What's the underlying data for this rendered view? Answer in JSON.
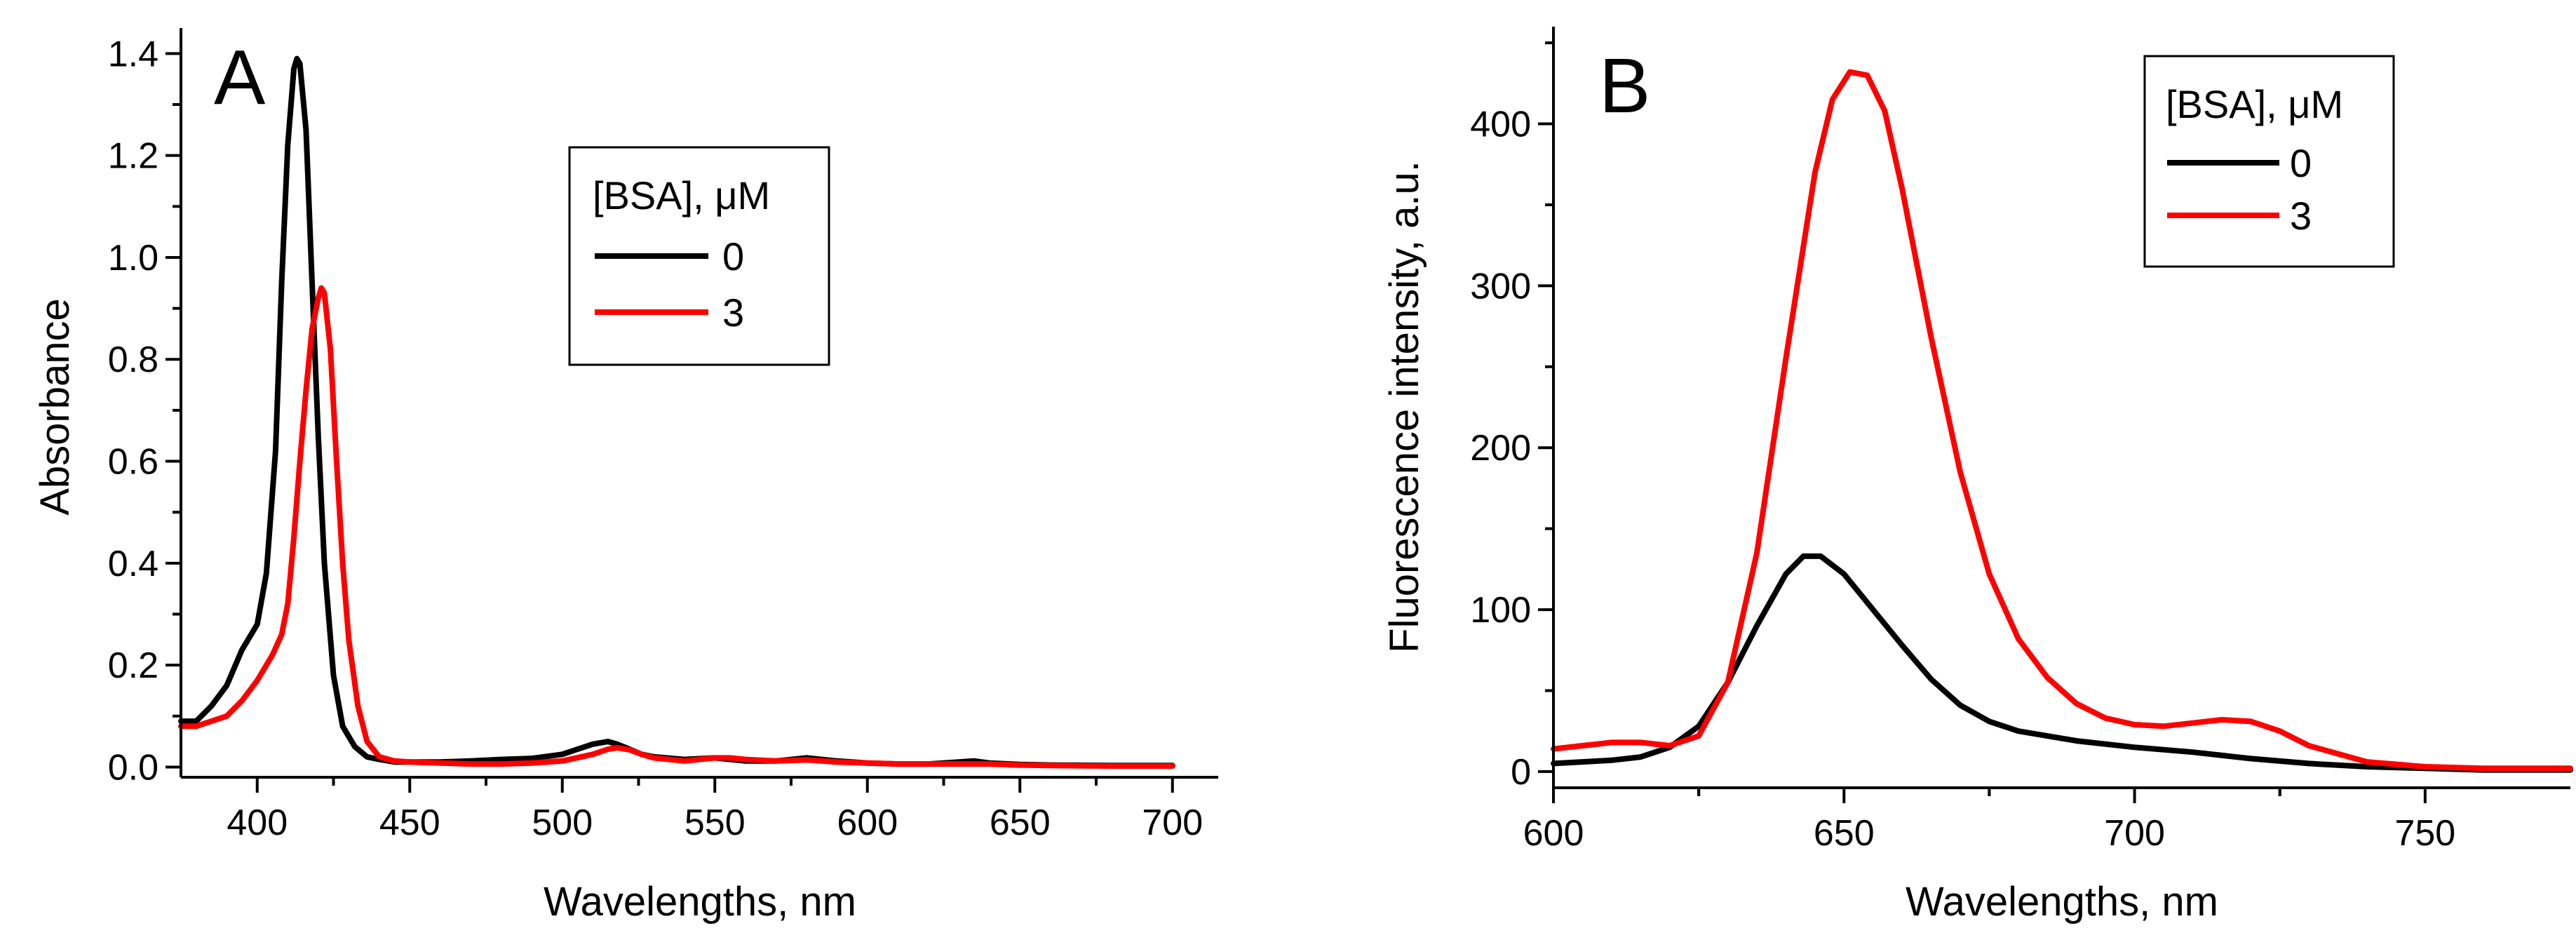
{
  "chart_data": [
    {
      "type": "line",
      "panel": "A",
      "xlabel": "Wavelengths, nm",
      "ylabel": "Absorbance",
      "xlim": [
        375,
        715
      ],
      "ylim": [
        -0.02,
        1.45
      ],
      "x_major_ticks": [
        400,
        450,
        500,
        550,
        600,
        650,
        700
      ],
      "x_tick_labels": [
        "400",
        "450",
        "500",
        "550",
        "600",
        "650",
        "700"
      ],
      "y_major_ticks": [
        0.0,
        0.2,
        0.4,
        0.6,
        0.8,
        1.0,
        1.2,
        1.4
      ],
      "y_tick_labels": [
        "0.0",
        "0.2",
        "0.4",
        "0.6",
        "0.8",
        "1.0",
        "1.2",
        "1.4"
      ],
      "legend": {
        "title": "[BSA], μM",
        "placement": "top-right",
        "entries": [
          "0",
          "3"
        ]
      },
      "series": [
        {
          "name": "0",
          "color": "#000000",
          "x": [
            375,
            380,
            385,
            390,
            395,
            400,
            403,
            406,
            408,
            410,
            412,
            413,
            414,
            416,
            418,
            420,
            422,
            425,
            428,
            432,
            436,
            440,
            445,
            450,
            460,
            470,
            480,
            490,
            500,
            505,
            510,
            515,
            518,
            522,
            526,
            530,
            540,
            550,
            560,
            570,
            580,
            590,
            600,
            610,
            620,
            630,
            635,
            640,
            650,
            660,
            680,
            700
          ],
          "y": [
            0.09,
            0.09,
            0.12,
            0.16,
            0.23,
            0.28,
            0.38,
            0.62,
            0.95,
            1.22,
            1.37,
            1.39,
            1.38,
            1.25,
            0.95,
            0.65,
            0.4,
            0.18,
            0.08,
            0.04,
            0.02,
            0.015,
            0.01,
            0.01,
            0.01,
            0.012,
            0.015,
            0.017,
            0.025,
            0.035,
            0.045,
            0.05,
            0.045,
            0.035,
            0.025,
            0.02,
            0.015,
            0.018,
            0.012,
            0.012,
            0.018,
            0.012,
            0.008,
            0.006,
            0.006,
            0.01,
            0.012,
            0.008,
            0.005,
            0.004,
            0.003,
            0.003
          ]
        },
        {
          "name": "3",
          "color": "#ff0000",
          "x": [
            375,
            380,
            385,
            390,
            395,
            400,
            405,
            408,
            410,
            412,
            414,
            416,
            418,
            420,
            421,
            422,
            424,
            426,
            428,
            430,
            433,
            436,
            440,
            445,
            450,
            460,
            470,
            480,
            490,
            500,
            510,
            515,
            518,
            522,
            526,
            530,
            540,
            550,
            555,
            560,
            570,
            580,
            590,
            600,
            610,
            620,
            630,
            640,
            650,
            660,
            680,
            700
          ],
          "y": [
            0.08,
            0.08,
            0.09,
            0.1,
            0.13,
            0.17,
            0.22,
            0.26,
            0.32,
            0.45,
            0.6,
            0.74,
            0.86,
            0.92,
            0.94,
            0.93,
            0.82,
            0.6,
            0.4,
            0.25,
            0.12,
            0.05,
            0.02,
            0.012,
            0.01,
            0.008,
            0.006,
            0.006,
            0.008,
            0.012,
            0.025,
            0.035,
            0.038,
            0.034,
            0.025,
            0.018,
            0.012,
            0.018,
            0.018,
            0.015,
            0.012,
            0.014,
            0.01,
            0.008,
            0.006,
            0.006,
            0.006,
            0.006,
            0.004,
            0.003,
            0.002,
            0.002
          ]
        }
      ]
    },
    {
      "type": "line",
      "panel": "B",
      "xlabel": "Wavelengths, nm",
      "ylabel": "Fluorescence intensity, a.u.",
      "xlim": [
        600,
        775
      ],
      "ylim": [
        -10,
        460
      ],
      "x_major_ticks": [
        600,
        650,
        700,
        750
      ],
      "x_tick_labels": [
        "600",
        "650",
        "700",
        "750"
      ],
      "y_major_ticks": [
        0,
        100,
        200,
        300,
        400
      ],
      "y_tick_labels": [
        "0",
        "100",
        "200",
        "300",
        "400"
      ],
      "legend": {
        "title": "[BSA], μM",
        "placement": "top-right",
        "entries": [
          "0",
          "3"
        ]
      },
      "series": [
        {
          "name": "0",
          "color": "#000000",
          "x": [
            600,
            605,
            610,
            615,
            620,
            625,
            630,
            635,
            640,
            643,
            646,
            650,
            655,
            660,
            665,
            670,
            675,
            680,
            690,
            700,
            710,
            720,
            730,
            740,
            750,
            760,
            770,
            775
          ],
          "y": [
            5,
            6,
            7,
            9,
            15,
            28,
            55,
            90,
            122,
            133,
            133,
            122,
            100,
            78,
            57,
            41,
            31,
            25,
            19,
            15,
            12,
            8,
            5,
            3,
            2,
            1,
            1,
            1
          ],
          "fill": "none"
        },
        {
          "name": "3",
          "color": "#ff0000",
          "x": [
            600,
            605,
            610,
            615,
            620,
            625,
            630,
            635,
            640,
            645,
            648,
            651,
            654,
            657,
            660,
            665,
            670,
            675,
            680,
            685,
            690,
            695,
            700,
            705,
            710,
            715,
            720,
            725,
            730,
            740,
            750,
            760,
            770,
            775
          ],
          "y": [
            14,
            16,
            18,
            18,
            16,
            22,
            55,
            135,
            255,
            370,
            415,
            432,
            430,
            408,
            360,
            268,
            185,
            122,
            82,
            58,
            42,
            33,
            29,
            28,
            30,
            32,
            31,
            25,
            16,
            6,
            3,
            2,
            2,
            2
          ]
        }
      ]
    }
  ]
}
